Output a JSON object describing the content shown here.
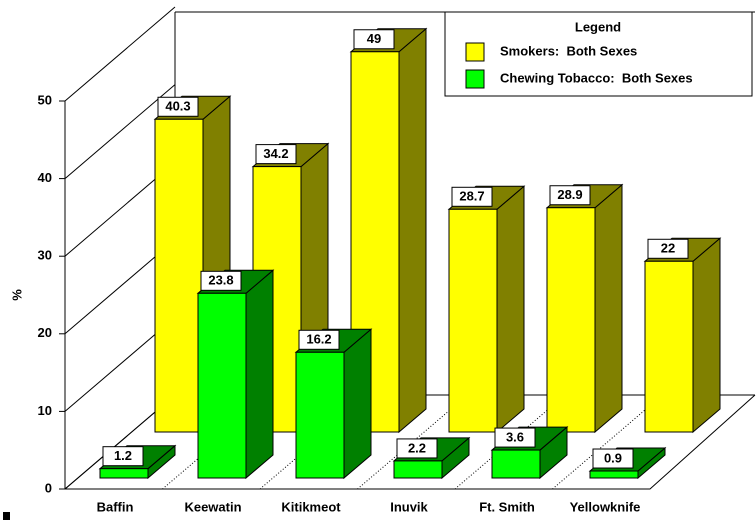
{
  "chart_data": {
    "type": "bar3d",
    "y_label": "%",
    "legend_title": "Legend",
    "categories": [
      "Baffin",
      "Keewatin",
      "Kitikmeot",
      "Inuvik",
      "Ft. Smith",
      "Yellowknife"
    ],
    "series": [
      {
        "name": "Smokers:  Both Sexes",
        "color": "#ffff00",
        "side_color": "#808000",
        "values": [
          40.3,
          34.2,
          49,
          28.7,
          28.9,
          22
        ]
      },
      {
        "name": "Chewing Tobacco:  Both Sexes",
        "color": "#00ff00",
        "side_color": "#008000",
        "values": [
          1.2,
          23.8,
          16.2,
          2.2,
          3.6,
          0.9
        ]
      }
    ],
    "ylim": [
      0,
      50
    ],
    "yticks": [
      0,
      10,
      20,
      30,
      40,
      50
    ]
  }
}
